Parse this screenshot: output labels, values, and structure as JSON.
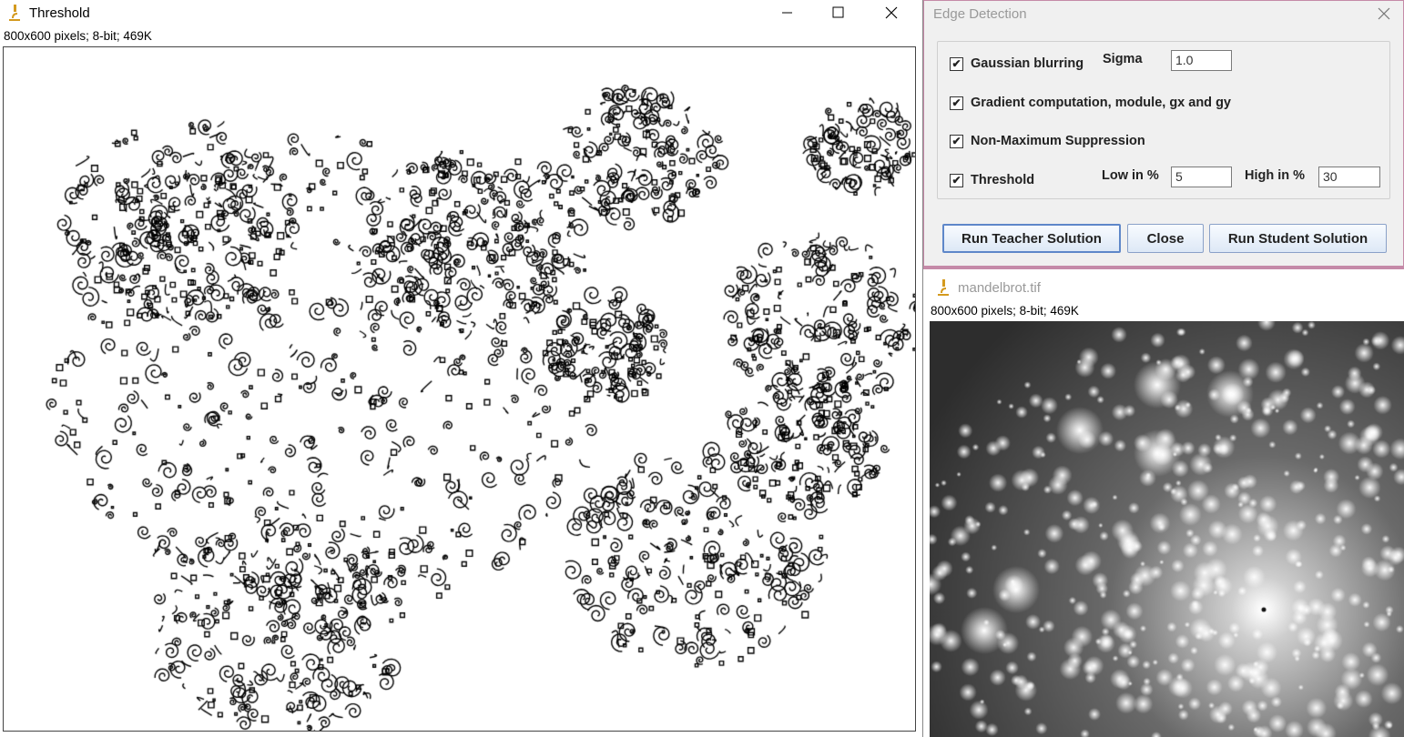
{
  "threshold_window": {
    "title": "Threshold",
    "info": "800x600 pixels; 8-bit; 469K",
    "controls": {
      "minimize": "minimize-icon",
      "maximize": "maximize-icon",
      "close": "close-icon"
    }
  },
  "edge_dialog": {
    "title": "Edge Detection",
    "options": [
      {
        "label": "Gaussian blurring",
        "checked": true
      },
      {
        "label": "Gradient computation, module, gx and gy",
        "checked": true
      },
      {
        "label": "Non-Maximum Suppression",
        "checked": true
      },
      {
        "label": "Threshold",
        "checked": true
      }
    ],
    "sigma_label": "Sigma",
    "sigma_value": "1.0",
    "low_label": "Low in %",
    "low_value": "5",
    "high_label": "High in %",
    "high_value": "30",
    "buttons": {
      "teacher": "Run Teacher Solution",
      "close": "Close",
      "student": "Run Student Solution"
    }
  },
  "mandel_window": {
    "title": "mandelbrot.tif",
    "info": "800x600 pixels; 8-bit; 469K"
  }
}
